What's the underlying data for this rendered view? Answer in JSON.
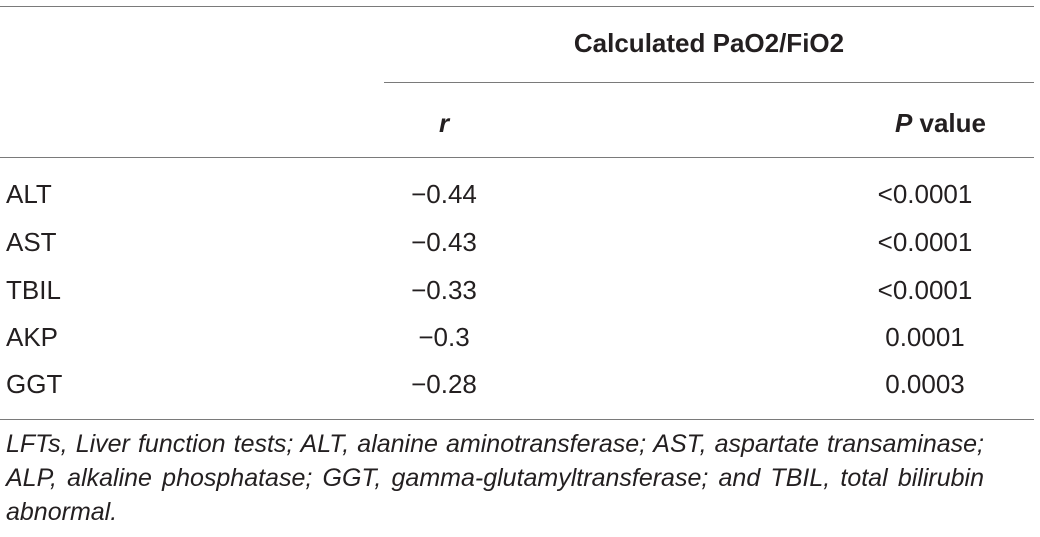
{
  "table": {
    "group_header": "Calculated PaO2/FiO2",
    "col_r_label": "r",
    "col_p_label_italic": "P",
    "col_p_label_rest": " value",
    "rows": [
      {
        "label": "ALT",
        "r": "−0.44",
        "p": "<0.0001"
      },
      {
        "label": "AST",
        "r": "−0.43",
        "p": "<0.0001"
      },
      {
        "label": "TBIL",
        "r": "−0.33",
        "p": "<0.0001"
      },
      {
        "label": "AKP",
        "r": "−0.3",
        "p": "0.0001"
      },
      {
        "label": "GGT",
        "r": "−0.28",
        "p": "0.0003"
      }
    ]
  },
  "footnote": "LFTs, Liver function tests; ALT, alanine aminotransferase; AST, aspartate transaminase; ALP, alkaline phosphatase; GGT, gamma-glutamyltransferase; and TBIL, total bilirubin abnormal."
}
